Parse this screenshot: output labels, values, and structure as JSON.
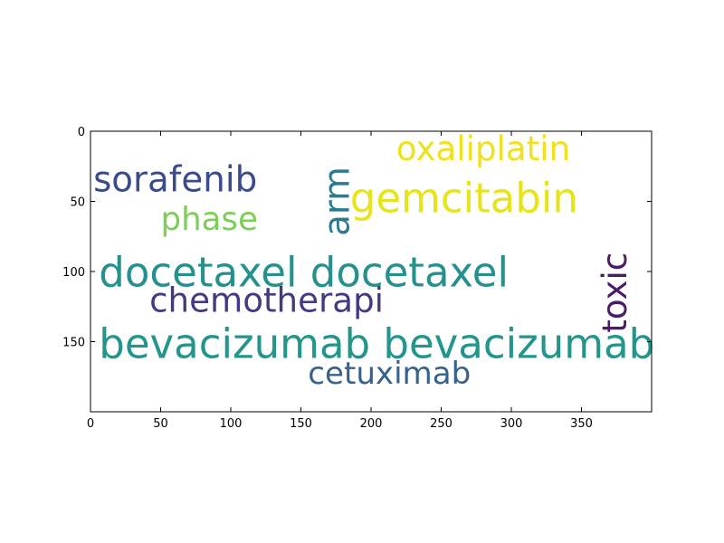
{
  "chart_data": {
    "type": "wordcloud",
    "xlim": [
      0,
      400
    ],
    "ylim": [
      200,
      0
    ],
    "x_ticks": [
      0,
      50,
      100,
      150,
      200,
      250,
      300,
      350
    ],
    "y_ticks": [
      0,
      50,
      100,
      150
    ],
    "words": [
      {
        "text": "oxaliplatin",
        "x": 218,
        "y": 14,
        "size": 24,
        "orientation": "horizontal",
        "color": "#f0e21a"
      },
      {
        "text": "sorafenib",
        "x": 2,
        "y": 36,
        "size": 25,
        "orientation": "horizontal",
        "color": "#3b4b8c"
      },
      {
        "text": "gemcitabin",
        "x": 185,
        "y": 50,
        "size": 29,
        "orientation": "horizontal",
        "color": "#e7e419"
      },
      {
        "text": "arm",
        "x": 166,
        "y": 50,
        "size": 25,
        "orientation": "vertical",
        "color": "#2a7b8e"
      },
      {
        "text": "phase",
        "x": 50,
        "y": 64,
        "size": 23,
        "orientation": "horizontal",
        "color": "#7ccf55"
      },
      {
        "text": "toxic",
        "x": 364,
        "y": 115,
        "size": 24,
        "orientation": "vertical",
        "color": "#4b1a6a"
      },
      {
        "text": "docetaxel docetaxel",
        "x": 6,
        "y": 103,
        "size": 29,
        "orientation": "horizontal",
        "color": "#24918c"
      },
      {
        "text": "chemotherapi",
        "x": 42,
        "y": 122,
        "size": 24,
        "orientation": "horizontal",
        "color": "#433b82"
      },
      {
        "text": "bevacizumab bevacizumab",
        "x": 6,
        "y": 154,
        "size": 29,
        "orientation": "horizontal",
        "color": "#22968b"
      },
      {
        "text": "cetuximab",
        "x": 155,
        "y": 174,
        "size": 22,
        "orientation": "horizontal",
        "color": "#36628c"
      }
    ]
  }
}
